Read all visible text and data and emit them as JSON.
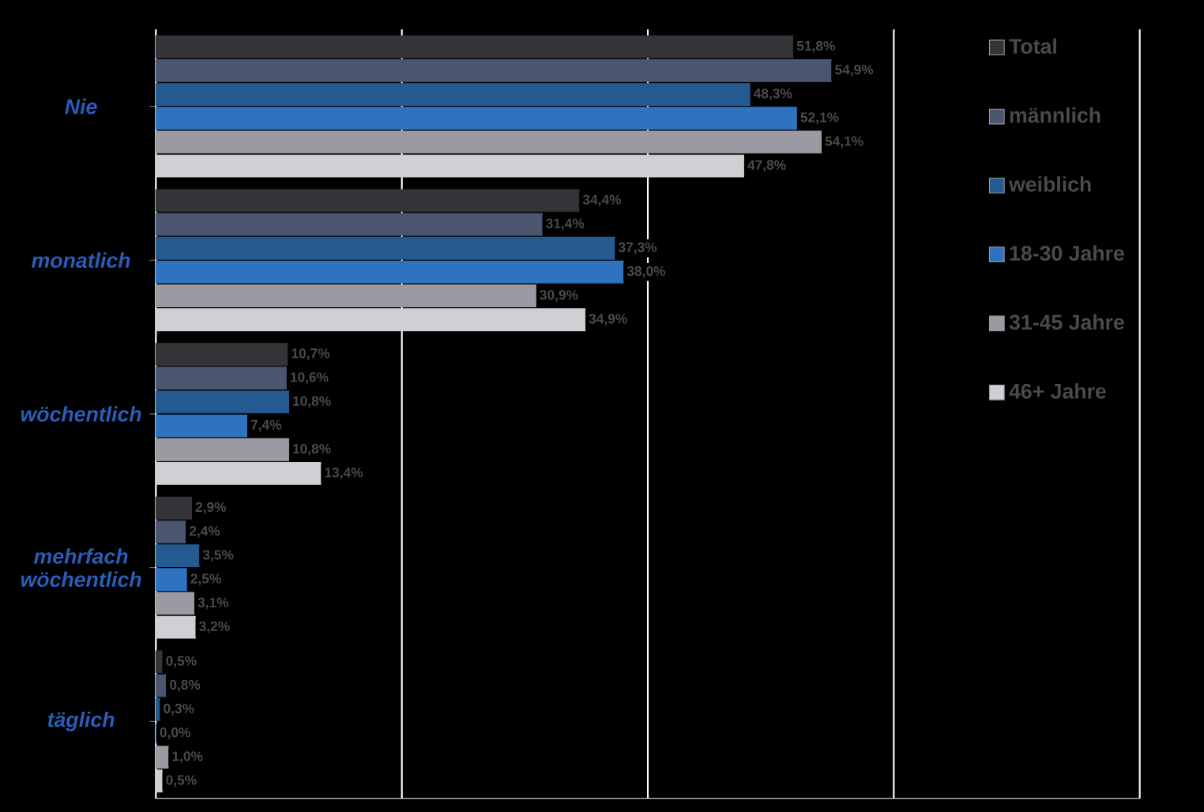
{
  "chart_data": {
    "type": "bar",
    "orientation": "horizontal",
    "categories": [
      "Nie",
      "monatlich",
      "wöchentlich",
      "mehrfach wöchentlich",
      "täglich"
    ],
    "series": [
      {
        "name": "Total",
        "color": "#333338",
        "values": [
          51.8,
          34.4,
          10.7,
          2.9,
          0.5
        ],
        "value_labels": [
          "51,8%",
          "34,4%",
          "10,7%",
          "2,9%",
          "0,5%"
        ]
      },
      {
        "name": "männlich",
        "color": "#4a5570",
        "values": [
          54.9,
          31.4,
          10.6,
          2.4,
          0.8
        ],
        "value_labels": [
          "54,9%",
          "31,4%",
          "10,6%",
          "2,4%",
          "0,8%"
        ]
      },
      {
        "name": "weiblich",
        "color": "#245a8f",
        "values": [
          48.3,
          37.3,
          10.8,
          3.5,
          0.3
        ],
        "value_labels": [
          "48,3%",
          "37,3%",
          "10,8%",
          "3,5%",
          "0,3%"
        ]
      },
      {
        "name": "18-30 Jahre",
        "color": "#2f72c0",
        "values": [
          52.1,
          38.0,
          7.4,
          2.5,
          0.0
        ],
        "value_labels": [
          "52,1%",
          "38,0%",
          "7,4%",
          "2,5%",
          "0,0%"
        ]
      },
      {
        "name": "31-45 Jahre",
        "color": "#9a9aa2",
        "values": [
          54.1,
          30.9,
          10.8,
          3.1,
          1.0
        ],
        "value_labels": [
          "54,1%",
          "30,9%",
          "10,8%",
          "3,1%",
          "1,0%"
        ]
      },
      {
        "name": "46+ Jahre",
        "color": "#cfcfd4",
        "values": [
          47.8,
          34.9,
          13.4,
          3.2,
          0.5
        ],
        "value_labels": [
          "47,8%",
          "34,9%",
          "13,4%",
          "3,2%",
          "0,5%"
        ]
      }
    ],
    "xlim": [
      0,
      80
    ],
    "xticks": [
      {
        "value": 0,
        "label": null
      },
      {
        "value": 20,
        "label": null
      },
      {
        "value": 40,
        "label": null
      },
      {
        "value": 60,
        "label": null
      },
      {
        "value": 80,
        "label": null
      }
    ],
    "tick_labels": "y",
    "grid": "x",
    "legend": "top right"
  }
}
